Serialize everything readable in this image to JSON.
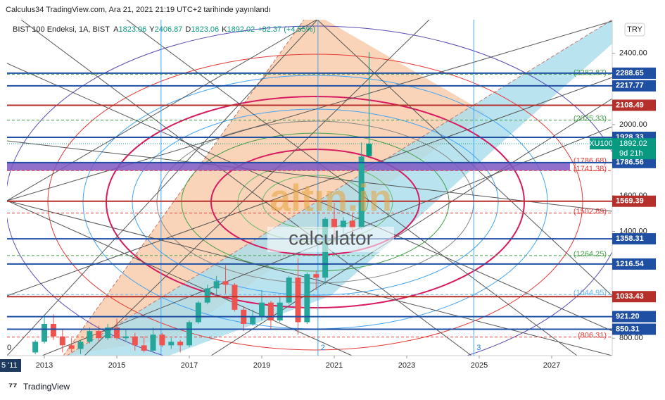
{
  "header": {
    "title": "Calculus34 TradingView.com, Ara 21, 2021 21:19 UTC+2 tarihinde yayınlandı"
  },
  "footer": {
    "brand": "TradingView"
  },
  "watermark": {
    "logo": "altın.in",
    "text": "calculator"
  },
  "chart_data": {
    "type": "candlestick",
    "symbol": "BIST 100 Endeksi, 1A, BIST",
    "ticker": "XU100",
    "currency": "TRY",
    "countdown": "9d 21h",
    "ohlc_labels": [
      "A",
      "Y",
      "D",
      "K"
    ],
    "change_label": "+82.37 (+4.55%)",
    "x_edge_label": "5 '11",
    "y_edge_label": "0",
    "x": [
      2012.75,
      2013.0,
      2013.25,
      2013.5,
      2013.75,
      2014.0,
      2014.25,
      2014.5,
      2014.75,
      2015.0,
      2015.25,
      2015.5,
      2015.75,
      2016.0,
      2016.25,
      2016.5,
      2016.75,
      2017.0,
      2017.25,
      2017.5,
      2017.75,
      2018.0,
      2018.25,
      2018.5,
      2018.75,
      2019.0,
      2019.25,
      2019.5,
      2019.75,
      2020.0,
      2020.25,
      2020.5,
      2020.75,
      2021.0,
      2021.25,
      2021.5,
      2021.75,
      2021.96
    ],
    "ohlc": [
      [
        720,
        790,
        710,
        780
      ],
      [
        780,
        930,
        770,
        880
      ],
      [
        880,
        935,
        790,
        810
      ],
      [
        810,
        850,
        720,
        760
      ],
      [
        760,
        800,
        720,
        740
      ],
      [
        740,
        790,
        710,
        780
      ],
      [
        780,
        860,
        770,
        840
      ],
      [
        840,
        870,
        780,
        800
      ],
      [
        800,
        880,
        790,
        860
      ],
      [
        860,
        910,
        790,
        800
      ],
      [
        800,
        850,
        780,
        810
      ],
      [
        810,
        830,
        730,
        760
      ],
      [
        760,
        810,
        720,
        730
      ],
      [
        730,
        860,
        720,
        820
      ],
      [
        820,
        830,
        750,
        760
      ],
      [
        760,
        800,
        740,
        780
      ],
      [
        780,
        790,
        720,
        760
      ],
      [
        760,
        900,
        750,
        890
      ],
      [
        890,
        1010,
        880,
        1000
      ],
      [
        1000,
        1100,
        990,
        1080
      ],
      [
        1080,
        1150,
        1040,
        1120
      ],
      [
        1120,
        1210,
        1050,
        1100
      ],
      [
        1100,
        1110,
        950,
        960
      ],
      [
        960,
        980,
        840,
        880
      ],
      [
        880,
        960,
        870,
        920
      ],
      [
        920,
        1070,
        900,
        1000
      ],
      [
        1000,
        1010,
        850,
        900
      ],
      [
        900,
        1030,
        890,
        1000
      ],
      [
        1000,
        1150,
        990,
        1140
      ],
      [
        1140,
        1250,
        820,
        890
      ],
      [
        890,
        1170,
        880,
        1160
      ],
      [
        1160,
        1180,
        1070,
        1140
      ],
      [
        1140,
        1480,
        1100,
        1470
      ],
      [
        1470,
        1560,
        1340,
        1420
      ],
      [
        1420,
        1480,
        1350,
        1460
      ],
      [
        1460,
        1500,
        1370,
        1420
      ],
      [
        1420,
        1900,
        1410,
        1820
      ],
      [
        1823.06,
        2406.87,
        1823.06,
        1892.02
      ]
    ],
    "up_color": "#26a69a",
    "down_color": "#ef5350",
    "last_color": "#089981",
    "xlim": [
      2011.97,
      2028.67
    ],
    "xticks": [
      2013,
      2015,
      2017,
      2019,
      2021,
      2023,
      2025,
      2027
    ],
    "ylim": [
      702,
      2589
    ],
    "yticks": [
      {
        "value": 2400,
        "label": "2400.00"
      },
      {
        "value": 2000,
        "label": "2000.00"
      },
      {
        "value": 1600,
        "label": "1600.00"
      },
      {
        "value": 1400,
        "label": "1400.00"
      },
      {
        "value": 800,
        "label": "800.00"
      }
    ],
    "cycle_lines": [
      {
        "x": 2016.22
      },
      {
        "x": 2020.55,
        "label": "2"
      },
      {
        "x": 2024.85,
        "label": "3"
      }
    ],
    "levels": [
      {
        "value": 2288.65,
        "color": "#1e4fa3"
      },
      {
        "value": 2217.77,
        "color": "#1e4fa3"
      },
      {
        "value": 2108.49,
        "color": "#b5302a"
      },
      {
        "value": 1928.33,
        "color": "#1e4fa3"
      },
      {
        "value": 1786.56,
        "color": "#1e4fa3"
      },
      {
        "value": 1569.39,
        "color": "#b5302a"
      },
      {
        "value": 1358.31,
        "color": "#1e4fa3"
      },
      {
        "value": 1216.54,
        "color": "#1e4fa3"
      },
      {
        "value": 1033.43,
        "color": "#b5302a"
      },
      {
        "value": 921.2,
        "label": "921.20",
        "color": "#1e4fa3"
      },
      {
        "value": 850.31,
        "color": "#1e4fa3"
      }
    ],
    "dashed_levels": [
      {
        "value": 2282.87,
        "label": "(2282.87)",
        "color": "#43a047"
      },
      {
        "value": 2025.33,
        "label": "(2025.33)",
        "color": "#43a047"
      },
      {
        "value": 1786.68,
        "label": "(1786.68)",
        "color": "#e53935"
      },
      {
        "value": 1741.38,
        "label": "(1741.38)",
        "color": "#e53935"
      },
      {
        "value": 1502.89,
        "label": "(1502.89)",
        "color": "#e53935"
      },
      {
        "value": 1264.25,
        "label": "(1264.25)",
        "color": "#43a047"
      },
      {
        "value": 1044.95,
        "label": "(1044.95)",
        "color": "#64b5f6"
      },
      {
        "value": 806.31,
        "label": "(806.31)",
        "color": "#e53935"
      }
    ]
  }
}
